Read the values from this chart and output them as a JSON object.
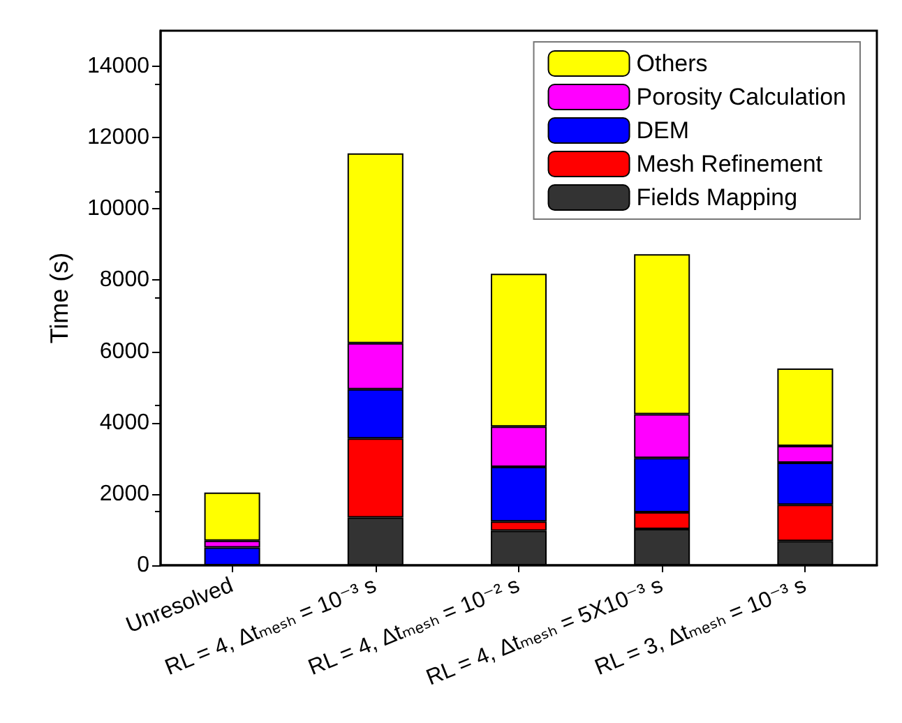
{
  "chart_data": {
    "type": "bar",
    "stacked": true,
    "ylabel": "Time (s)",
    "categories": [
      "Unresolved",
      "RL = 4, Δtₘₑₛₕ = 10⁻³ s",
      "RL = 4, Δtₘₑₛₕ = 10⁻² s",
      "RL = 4, Δtₘₑₛₕ = 5X10⁻³ s",
      "RL = 3, Δtₘₑₛₕ = 10⁻³ s"
    ],
    "series": [
      {
        "name": "Fields Mapping",
        "color": "#333333",
        "values": [
          0,
          1340,
          970,
          1020,
          680
        ]
      },
      {
        "name": "Mesh Refinement",
        "color": "#ff0000",
        "values": [
          0,
          2220,
          260,
          470,
          1020
        ]
      },
      {
        "name": "DEM",
        "color": "#0000ff",
        "values": [
          500,
          1380,
          1530,
          1520,
          1180
        ]
      },
      {
        "name": "Porosity Calculation",
        "color": "#ff00ff",
        "values": [
          190,
          1290,
          1130,
          1230,
          470
        ]
      },
      {
        "name": "Others",
        "color": "#ffff00",
        "values": [
          1350,
          5330,
          4290,
          4490,
          2170
        ]
      }
    ],
    "ylim": [
      0,
      15000
    ],
    "yticks": [
      0,
      2000,
      4000,
      6000,
      8000,
      10000,
      12000,
      14000
    ],
    "grid": false,
    "legend": "top right"
  }
}
